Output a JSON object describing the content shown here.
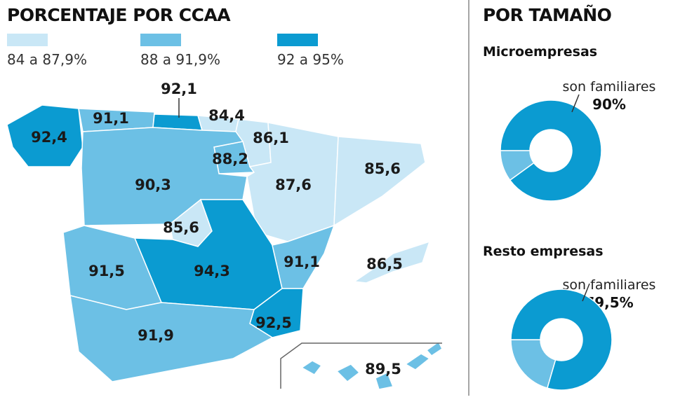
{
  "map_title": "PORCENTAJE POR CCAA",
  "legend": [
    {
      "label": "84 a 87,9%",
      "min": 84,
      "max": 87.9,
      "color": "#c9e7f6"
    },
    {
      "label": "88 a 91,9%",
      "min": 88,
      "max": 91.9,
      "color": "#6cc0e5"
    },
    {
      "label": "92 a 95%",
      "min": 92,
      "max": 95,
      "color": "#0b9bd1"
    }
  ],
  "regions": [
    {
      "value": 92.4,
      "label": "92,4"
    },
    {
      "value": 91.1,
      "label": "91,1"
    },
    {
      "value": 92.1,
      "label": "92,1"
    },
    {
      "value": 84.4,
      "label": "84,4"
    },
    {
      "value": 86.1,
      "label": "86,1"
    },
    {
      "value": 88.2,
      "label": "88,2"
    },
    {
      "value": 87.6,
      "label": "87,6"
    },
    {
      "value": 85.6,
      "label": "85,6"
    },
    {
      "value": 90.3,
      "label": "90,3"
    },
    {
      "value": 85.6,
      "label": "85,6"
    },
    {
      "value": 94.3,
      "label": "94,3"
    },
    {
      "value": 91.5,
      "label": "91,5"
    },
    {
      "value": 91.1,
      "label": "91,1"
    },
    {
      "value": 92.5,
      "label": "92,5"
    },
    {
      "value": 91.9,
      "label": "91,9"
    },
    {
      "value": 86.5,
      "label": "86,5"
    },
    {
      "value": 89.5,
      "label": "89,5"
    }
  ],
  "size_title": "POR TAMAÑO",
  "donuts": [
    {
      "title": "Microempresas",
      "label": "son familiares",
      "value": 90,
      "value_label": "90%",
      "color": "#0b9bd1",
      "rest_color": "#6cc0e5"
    },
    {
      "title": "Resto empresas",
      "label": "son familiares",
      "value": 79.5,
      "value_label": "79,5%",
      "color": "#0b9bd1",
      "rest_color": "#6cc0e5"
    }
  ]
}
